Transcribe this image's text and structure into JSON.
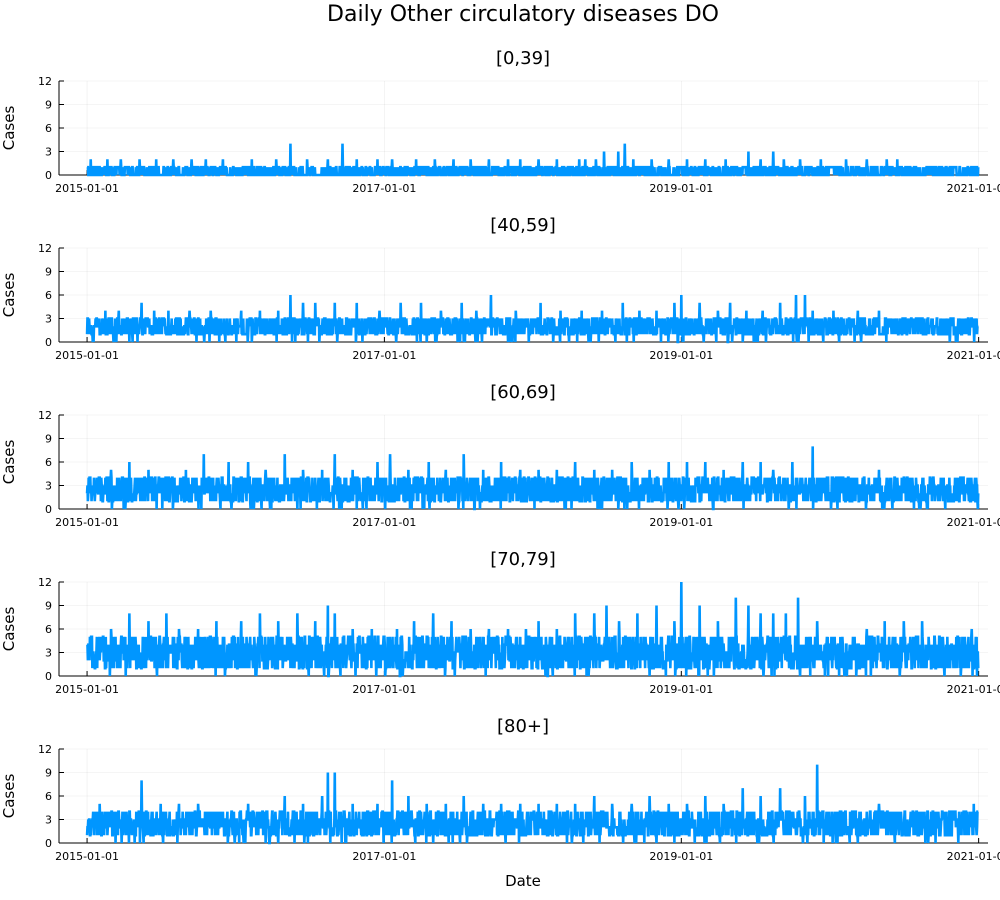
{
  "chart_data": {
    "type": "line",
    "title": "Daily Other circulatory diseases DO",
    "xlabel": "Date",
    "ylabel": "Cases",
    "line_color": "#0096ff",
    "x_range": [
      "2014-10-24",
      "2021-01-24"
    ],
    "data_start": "2015-01-01",
    "data_end": "2020-12-31",
    "x_ticks": [
      "2015-01-01",
      "2017-01-01",
      "2019-01-01",
      "2021-01-01"
    ],
    "ylim": [
      0,
      12
    ],
    "y_ticks": [
      "0",
      "3",
      "6",
      "9",
      "12"
    ],
    "grid": true,
    "legend": "none",
    "panels": [
      {
        "title": "[0,39]",
        "baseline": [
          0,
          1
        ],
        "peaks": [
          [
            "2015-01-10",
            2
          ],
          [
            "2015-02-20",
            2
          ],
          [
            "2015-03-25",
            2
          ],
          [
            "2015-05-10",
            2
          ],
          [
            "2015-06-20",
            2
          ],
          [
            "2015-08-01",
            2
          ],
          [
            "2015-09-15",
            2
          ],
          [
            "2015-10-20",
            2
          ],
          [
            "2015-12-01",
            2
          ],
          [
            "2016-02-10",
            2
          ],
          [
            "2016-04-10",
            2
          ],
          [
            "2016-05-15",
            4
          ],
          [
            "2016-06-25",
            2
          ],
          [
            "2016-08-15",
            2
          ],
          [
            "2016-09-20",
            4
          ],
          [
            "2016-10-25",
            2
          ],
          [
            "2016-12-15",
            2
          ],
          [
            "2017-01-20",
            2
          ],
          [
            "2017-03-20",
            2
          ],
          [
            "2017-05-05",
            2
          ],
          [
            "2017-06-20",
            2
          ],
          [
            "2017-08-01",
            2
          ],
          [
            "2017-09-15",
            2
          ],
          [
            "2017-11-01",
            2
          ],
          [
            "2017-12-01",
            2
          ],
          [
            "2018-01-15",
            2
          ],
          [
            "2018-03-01",
            2
          ],
          [
            "2018-04-25",
            2
          ],
          [
            "2018-05-10",
            2
          ],
          [
            "2018-06-05",
            2
          ],
          [
            "2018-06-25",
            3
          ],
          [
            "2018-07-30",
            3
          ],
          [
            "2018-08-15",
            4
          ],
          [
            "2018-09-05",
            2
          ],
          [
            "2018-10-20",
            2
          ],
          [
            "2018-12-01",
            2
          ],
          [
            "2019-01-15",
            2
          ],
          [
            "2019-03-01",
            2
          ],
          [
            "2019-04-20",
            2
          ],
          [
            "2019-06-15",
            3
          ],
          [
            "2019-07-15",
            2
          ],
          [
            "2019-08-15",
            3
          ],
          [
            "2019-09-10",
            2
          ],
          [
            "2019-10-20",
            2
          ],
          [
            "2019-12-10",
            2
          ],
          [
            "2020-02-10",
            2
          ],
          [
            "2020-04-01",
            2
          ],
          [
            "2020-05-20",
            2
          ],
          [
            "2020-06-15",
            2
          ],
          [
            "2020-12-15",
            1
          ]
        ]
      },
      {
        "title": "[40,59]",
        "baseline": [
          1,
          3
        ],
        "peaks": [
          [
            "2015-02-15",
            4
          ],
          [
            "2015-03-20",
            4
          ],
          [
            "2015-05-15",
            5
          ],
          [
            "2015-06-15",
            4
          ],
          [
            "2015-07-20",
            4
          ],
          [
            "2015-09-10",
            4
          ],
          [
            "2015-11-01",
            4
          ],
          [
            "2016-01-15",
            4
          ],
          [
            "2016-03-01",
            4
          ],
          [
            "2016-04-15",
            4
          ],
          [
            "2016-05-15",
            6
          ],
          [
            "2016-06-15",
            5
          ],
          [
            "2016-07-15",
            5
          ],
          [
            "2016-09-01",
            5
          ],
          [
            "2016-10-25",
            5
          ],
          [
            "2016-12-20",
            4
          ],
          [
            "2017-02-10",
            5
          ],
          [
            "2017-04-01",
            5
          ],
          [
            "2017-05-20",
            4
          ],
          [
            "2017-07-10",
            5
          ],
          [
            "2017-08-15",
            4
          ],
          [
            "2017-09-20",
            6
          ],
          [
            "2017-11-20",
            4
          ],
          [
            "2018-01-20",
            5
          ],
          [
            "2018-03-10",
            4
          ],
          [
            "2018-05-01",
            4
          ],
          [
            "2018-06-20",
            4
          ],
          [
            "2018-08-10",
            5
          ],
          [
            "2018-09-20",
            4
          ],
          [
            "2018-11-01",
            4
          ],
          [
            "2018-12-15",
            5
          ],
          [
            "2019-01-01",
            6
          ],
          [
            "2019-02-15",
            5
          ],
          [
            "2019-04-01",
            4
          ],
          [
            "2019-05-01",
            5
          ],
          [
            "2019-06-10",
            4
          ],
          [
            "2019-07-20",
            4
          ],
          [
            "2019-09-01",
            5
          ],
          [
            "2019-10-10",
            6
          ],
          [
            "2019-11-01",
            6
          ],
          [
            "2019-11-20",
            4
          ],
          [
            "2020-01-10",
            4
          ],
          [
            "2020-03-10",
            4
          ],
          [
            "2020-05-01",
            4
          ],
          [
            "2020-12-20",
            2
          ]
        ]
      },
      {
        "title": "[60,69]",
        "baseline": [
          1,
          4
        ],
        "peaks": [
          [
            "2015-01-05",
            4
          ],
          [
            "2015-03-01",
            5
          ],
          [
            "2015-04-15",
            6
          ],
          [
            "2015-06-01",
            5
          ],
          [
            "2015-07-15",
            4
          ],
          [
            "2015-09-01",
            5
          ],
          [
            "2015-10-15",
            7
          ],
          [
            "2015-12-15",
            6
          ],
          [
            "2016-02-01",
            6
          ],
          [
            "2016-03-15",
            5
          ],
          [
            "2016-05-01",
            7
          ],
          [
            "2016-06-15",
            5
          ],
          [
            "2016-08-01",
            5
          ],
          [
            "2016-09-01",
            7
          ],
          [
            "2016-10-15",
            5
          ],
          [
            "2016-12-15",
            6
          ],
          [
            "2017-01-15",
            7
          ],
          [
            "2017-03-01",
            5
          ],
          [
            "2017-04-20",
            6
          ],
          [
            "2017-06-01",
            5
          ],
          [
            "2017-07-15",
            7
          ],
          [
            "2017-09-01",
            5
          ],
          [
            "2017-10-15",
            6
          ],
          [
            "2017-12-01",
            5
          ],
          [
            "2018-01-15",
            5
          ],
          [
            "2018-03-01",
            5
          ],
          [
            "2018-04-15",
            6
          ],
          [
            "2018-06-01",
            5
          ],
          [
            "2018-07-15",
            5
          ],
          [
            "2018-09-01",
            6
          ],
          [
            "2018-10-15",
            5
          ],
          [
            "2018-12-01",
            6
          ],
          [
            "2019-01-15",
            6
          ],
          [
            "2019-03-01",
            6
          ],
          [
            "2019-04-15",
            5
          ],
          [
            "2019-06-01",
            6
          ],
          [
            "2019-07-15",
            6
          ],
          [
            "2019-08-15",
            5
          ],
          [
            "2019-10-01",
            6
          ],
          [
            "2019-11-20",
            8
          ],
          [
            "2020-03-15",
            3
          ],
          [
            "2020-05-01",
            5
          ],
          [
            "2020-06-15",
            4
          ],
          [
            "2020-08-01",
            3
          ],
          [
            "2020-10-01",
            3
          ],
          [
            "2020-12-01",
            3
          ]
        ]
      },
      {
        "title": "[70,79]",
        "baseline": [
          1,
          5
        ],
        "peaks": [
          [
            "2015-03-01",
            6
          ],
          [
            "2015-04-15",
            8
          ],
          [
            "2015-06-01",
            7
          ],
          [
            "2015-07-15",
            8
          ],
          [
            "2015-08-15",
            6
          ],
          [
            "2015-10-01",
            6
          ],
          [
            "2015-11-15",
            7
          ],
          [
            "2016-01-15",
            7
          ],
          [
            "2016-03-01",
            8
          ],
          [
            "2016-04-15",
            7
          ],
          [
            "2016-06-01",
            8
          ],
          [
            "2016-07-15",
            7
          ],
          [
            "2016-08-15",
            9
          ],
          [
            "2016-09-01",
            8
          ],
          [
            "2016-10-15",
            6
          ],
          [
            "2016-12-01",
            6
          ],
          [
            "2017-02-01",
            6
          ],
          [
            "2017-03-15",
            7
          ],
          [
            "2017-05-01",
            8
          ],
          [
            "2017-06-15",
            7
          ],
          [
            "2017-08-01",
            6
          ],
          [
            "2017-09-15",
            6
          ],
          [
            "2017-11-01",
            6
          ],
          [
            "2017-12-15",
            6
          ],
          [
            "2018-01-15",
            7
          ],
          [
            "2018-03-01",
            6
          ],
          [
            "2018-04-15",
            8
          ],
          [
            "2018-06-01",
            8
          ],
          [
            "2018-07-01",
            9
          ],
          [
            "2018-08-01",
            7
          ],
          [
            "2018-09-15",
            8
          ],
          [
            "2018-11-01",
            9
          ],
          [
            "2018-12-15",
            7
          ],
          [
            "2019-01-01",
            12
          ],
          [
            "2019-02-15",
            9
          ],
          [
            "2019-04-01",
            7
          ],
          [
            "2019-05-15",
            10
          ],
          [
            "2019-06-15",
            9
          ],
          [
            "2019-07-15",
            8
          ],
          [
            "2019-08-15",
            8
          ],
          [
            "2019-09-15",
            8
          ],
          [
            "2019-10-15",
            10
          ],
          [
            "2019-12-01",
            7
          ],
          [
            "2020-02-01",
            5
          ],
          [
            "2020-04-01",
            6
          ],
          [
            "2020-05-15",
            7
          ],
          [
            "2020-07-01",
            7
          ],
          [
            "2020-08-15",
            7
          ],
          [
            "2020-10-01",
            5
          ],
          [
            "2020-12-15",
            6
          ]
        ]
      },
      {
        "title": "[80+]",
        "baseline": [
          1,
          4
        ],
        "peaks": [
          [
            "2015-02-01",
            5
          ],
          [
            "2015-03-15",
            4
          ],
          [
            "2015-05-15",
            8
          ],
          [
            "2015-07-01",
            5
          ],
          [
            "2015-08-15",
            5
          ],
          [
            "2015-10-01",
            5
          ],
          [
            "2015-12-01",
            4
          ],
          [
            "2016-02-01",
            5
          ],
          [
            "2016-04-01",
            4
          ],
          [
            "2016-05-01",
            6
          ],
          [
            "2016-06-15",
            5
          ],
          [
            "2016-08-01",
            6
          ],
          [
            "2016-08-15",
            9
          ],
          [
            "2016-09-01",
            9
          ],
          [
            "2016-10-15",
            5
          ],
          [
            "2016-12-15",
            5
          ],
          [
            "2017-01-20",
            8
          ],
          [
            "2017-03-01",
            6
          ],
          [
            "2017-04-15",
            5
          ],
          [
            "2017-06-01",
            5
          ],
          [
            "2017-07-15",
            6
          ],
          [
            "2017-09-01",
            5
          ],
          [
            "2017-10-15",
            5
          ],
          [
            "2017-12-01",
            5
          ],
          [
            "2018-01-15",
            5
          ],
          [
            "2018-03-01",
            5
          ],
          [
            "2018-04-15",
            5
          ],
          [
            "2018-06-01",
            6
          ],
          [
            "2018-07-15",
            5
          ],
          [
            "2018-09-01",
            5
          ],
          [
            "2018-10-15",
            6
          ],
          [
            "2018-12-01",
            5
          ],
          [
            "2019-01-15",
            5
          ],
          [
            "2019-03-01",
            6
          ],
          [
            "2019-04-15",
            5
          ],
          [
            "2019-06-01",
            7
          ],
          [
            "2019-07-15",
            6
          ],
          [
            "2019-09-01",
            7
          ],
          [
            "2019-11-01",
            6
          ],
          [
            "2019-12-01",
            10
          ],
          [
            "2020-03-01",
            4
          ],
          [
            "2020-05-01",
            5
          ],
          [
            "2020-06-15",
            4
          ],
          [
            "2020-08-01",
            4
          ],
          [
            "2020-10-01",
            3
          ],
          [
            "2020-12-20",
            5
          ]
        ]
      }
    ]
  }
}
